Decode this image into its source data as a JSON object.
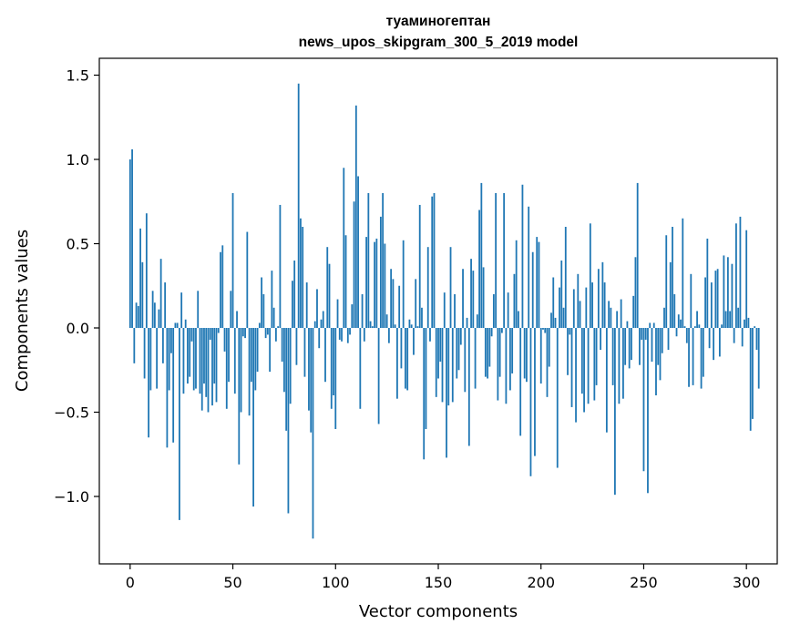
{
  "chart_data": {
    "type": "bar",
    "title": "туаминогептан",
    "subtitle": "news_upos_skipgram_300_5_2019 model",
    "xlabel": "Vector components",
    "ylabel": "Components values",
    "xlim": [
      -15,
      315
    ],
    "ylim": [
      -1.4,
      1.6
    ],
    "xticks": [
      0,
      50,
      100,
      150,
      200,
      250,
      300
    ],
    "yticks": [
      -1.0,
      -0.5,
      0.0,
      0.5,
      1.0,
      1.5
    ],
    "ytick_labels": [
      "−1.0",
      "−0.5",
      "0.0",
      "0.5",
      "1.0",
      "1.5"
    ],
    "grid": false,
    "color": "#1f77b4",
    "values": [
      1.0,
      1.06,
      -0.21,
      0.15,
      0.13,
      0.59,
      0.39,
      -0.3,
      0.68,
      -0.65,
      -0.37,
      0.22,
      0.15,
      -0.36,
      0.11,
      0.41,
      -0.21,
      0.27,
      -0.71,
      -0.37,
      -0.15,
      -0.68,
      0.03,
      0.03,
      -1.14,
      0.21,
      -0.39,
      0.05,
      -0.33,
      -0.29,
      -0.08,
      -0.37,
      -0.36,
      0.22,
      -0.39,
      -0.49,
      -0.33,
      -0.41,
      -0.5,
      -0.07,
      -0.46,
      -0.33,
      -0.44,
      -0.03,
      0.45,
      0.49,
      -0.14,
      -0.48,
      -0.32,
      0.22,
      0.8,
      -0.39,
      0.1,
      -0.81,
      -0.5,
      -0.05,
      -0.06,
      0.57,
      -0.52,
      -0.32,
      -1.06,
      -0.37,
      -0.26,
      0.03,
      0.3,
      0.2,
      -0.06,
      -0.04,
      -0.26,
      0.34,
      0.12,
      -0.08,
      0.01,
      0.73,
      -0.2,
      -0.38,
      -0.61,
      -1.1,
      -0.45,
      0.28,
      0.4,
      -0.22,
      1.45,
      0.65,
      0.6,
      -0.29,
      0.27,
      -0.49,
      -0.62,
      -1.25,
      0.04,
      0.23,
      -0.12,
      0.05,
      0.1,
      -0.32,
      0.48,
      0.38,
      -0.48,
      -0.4,
      -0.6,
      0.17,
      -0.07,
      -0.08,
      0.95,
      0.55,
      -0.09,
      -0.04,
      0.14,
      0.75,
      1.32,
      0.9,
      -0.48,
      0.2,
      -0.08,
      0.54,
      0.8,
      0.04,
      0.01,
      0.51,
      0.53,
      -0.57,
      0.66,
      0.8,
      0.5,
      0.08,
      -0.09,
      0.35,
      0.29,
      0.02,
      -0.42,
      0.25,
      -0.24,
      0.52,
      -0.36,
      -0.37,
      0.05,
      0.02,
      -0.16,
      0.29,
      0.01,
      0.73,
      0.12,
      -0.78,
      -0.6,
      0.48,
      -0.08,
      0.78,
      0.8,
      -0.41,
      -0.3,
      -0.2,
      -0.44,
      0.21,
      -0.77,
      -0.46,
      0.48,
      -0.44,
      0.2,
      -0.3,
      -0.25,
      -0.1,
      0.35,
      -0.38,
      0.06,
      -0.7,
      0.41,
      0.34,
      -0.36,
      0.08,
      0.7,
      0.86,
      0.36,
      -0.29,
      -0.3,
      -0.23,
      -0.05,
      0.2,
      0.8,
      -0.43,
      -0.29,
      -0.03,
      0.8,
      -0.45,
      0.21,
      -0.37,
      -0.27,
      0.32,
      0.52,
      0.1,
      -0.64,
      0.85,
      -0.3,
      -0.32,
      0.72,
      -0.88,
      0.45,
      -0.76,
      0.54,
      0.51,
      -0.33,
      -0.01,
      -0.03,
      -0.41,
      -0.23,
      0.09,
      0.3,
      0.06,
      -0.83,
      0.24,
      0.4,
      0.12,
      0.6,
      -0.28,
      -0.04,
      -0.47,
      0.23,
      -0.56,
      0.32,
      0.16,
      -0.39,
      -0.5,
      0.24,
      -0.45,
      0.62,
      0.27,
      -0.43,
      -0.34,
      0.35,
      -0.13,
      0.39,
      0.27,
      -0.62,
      0.16,
      0.12,
      -0.34,
      -0.99,
      0.1,
      -0.45,
      0.17,
      -0.42,
      -0.22,
      0.04,
      -0.24,
      -0.19,
      0.19,
      0.42,
      0.86,
      -0.22,
      -0.07,
      -0.85,
      -0.07,
      -0.98,
      0.03,
      -0.2,
      0.03,
      -0.4,
      -0.22,
      -0.31,
      -0.15,
      0.12,
      0.55,
      -0.13,
      0.39,
      0.6,
      0.2,
      -0.05,
      0.08,
      0.05,
      0.65,
      0.01,
      -0.09,
      -0.35,
      0.32,
      -0.34,
      0.01,
      0.1,
      0.02,
      -0.36,
      -0.29,
      0.3,
      0.53,
      -0.12,
      0.27,
      -0.19,
      0.34,
      0.35,
      -0.17,
      0.02,
      0.43,
      0.1,
      0.42,
      0.1,
      0.38,
      -0.09,
      0.62,
      0.12,
      0.66,
      -0.11,
      0.05,
      0.58,
      0.06,
      -0.61,
      -0.54,
      0.01,
      -0.13,
      -0.36
    ]
  }
}
